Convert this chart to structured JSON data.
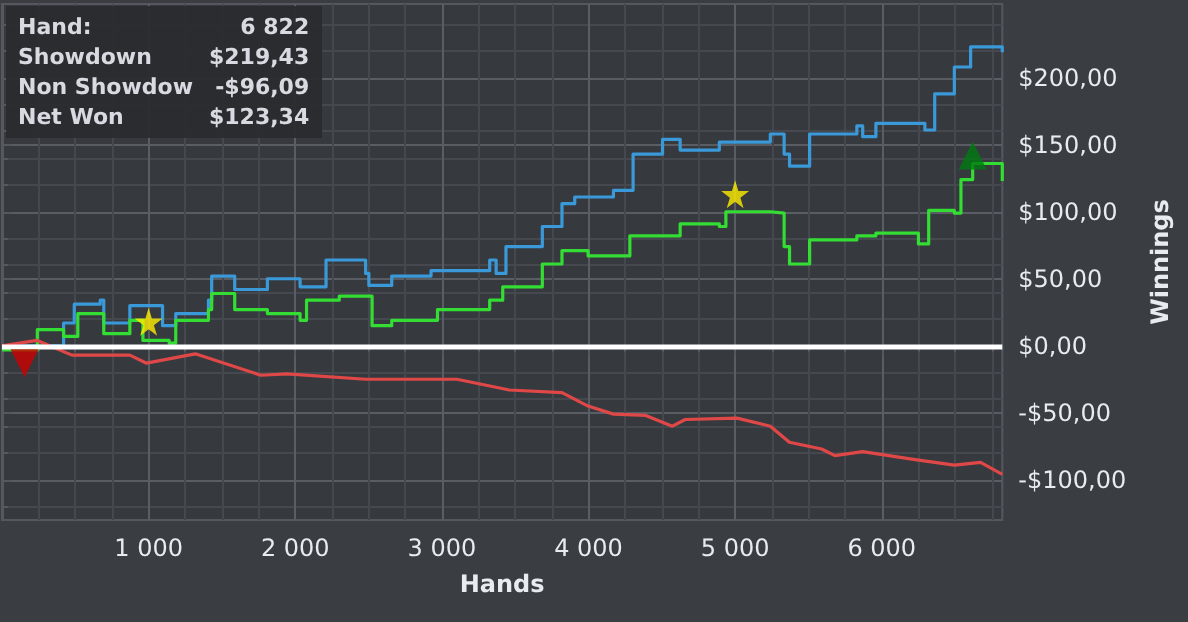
{
  "chart_data": {
    "type": "step",
    "xlabel": "Hands",
    "ylabel": "Winnings",
    "annotations": [
      "Hand:",
      "6 822",
      "Showdown",
      "$219,43",
      "Non Showdow",
      "-$96,09",
      "Net Won",
      "$123,34"
    ],
    "xlim": [
      0,
      6822
    ],
    "ylim": [
      -130,
      255
    ],
    "xticks": [
      {
        "value": 1000,
        "label": "1 000"
      },
      {
        "value": 2000,
        "label": "2 000"
      },
      {
        "value": 3000,
        "label": "3 000"
      },
      {
        "value": 4000,
        "label": "4 000"
      },
      {
        "value": 5000,
        "label": "5 000"
      },
      {
        "value": 6000,
        "label": "6 000"
      }
    ],
    "yticks": [
      {
        "value": -100,
        "label": "-$100,00"
      },
      {
        "value": -50,
        "label": "-$50,00"
      },
      {
        "value": 0,
        "label": "$0,00"
      },
      {
        "value": 50,
        "label": "$50,00"
      },
      {
        "value": 100,
        "label": "$100,00"
      },
      {
        "value": 150,
        "label": "$150,00"
      },
      {
        "value": 200,
        "label": "$200,00"
      }
    ],
    "grid": true,
    "legend": false,
    "marker": "none",
    "ref_lines": [
      {
        "axis": "y",
        "value": 0,
        "color": "#ffffff"
      }
    ],
    "series": [
      {
        "color": "#3a9ad9",
        "x": [
          0,
          420,
          493,
          670,
          694,
          872,
          1095,
          1185,
          1408,
          1430,
          1587,
          1810,
          2033,
          2210,
          2480,
          2502,
          2658,
          2926,
          3326,
          3370,
          3437,
          3685,
          3819,
          3906,
          4170,
          4304,
          4505,
          4625,
          4892,
          5240,
          5334,
          5371,
          5508,
          5830,
          5870,
          5960,
          6228,
          6294,
          6361,
          6495,
          6606,
          6822
        ],
        "values": [
          0,
          17,
          31,
          34,
          17,
          30,
          15,
          24,
          34,
          52,
          42,
          50,
          44,
          64,
          54,
          45,
          52,
          56,
          64,
          54,
          74,
          89,
          106,
          111,
          116,
          143,
          154,
          146,
          152,
          158,
          143,
          134,
          158,
          164,
          156,
          166,
          166,
          161,
          188,
          208,
          223,
          219
        ]
      },
      {
        "color": "#33dd33",
        "x": [
          0,
          241,
          420,
          517,
          694,
          872,
          961,
          1140,
          1185,
          1408,
          1430,
          1587,
          1810,
          2033,
          2077,
          2300,
          2524,
          2658,
          2970,
          3326,
          3415,
          3685,
          3819,
          3997,
          4237,
          4282,
          4625,
          4892,
          4937,
          5240,
          5334,
          5371,
          5508,
          5830,
          5960,
          6250,
          6320,
          6495,
          6540,
          6620,
          6822
        ],
        "values": [
          -3,
          12,
          7,
          24,
          9,
          19,
          4,
          2,
          19,
          27,
          39,
          27,
          24,
          19,
          34,
          37,
          15,
          19,
          27,
          34,
          44,
          61,
          71,
          67,
          67,
          82,
          91,
          89,
          100,
          99,
          74,
          61,
          79,
          82,
          84,
          76,
          101,
          99,
          124,
          136,
          123
        ]
      },
      {
        "type": "line",
        "color": "#e04848",
        "x": [
          0,
          240,
          477,
          872,
          986,
          1318,
          1765,
          1943,
          2480,
          3103,
          3460,
          3819,
          3997,
          4170,
          4390,
          4572,
          4660,
          5013,
          5240,
          5370,
          5590,
          5680,
          5870,
          6228,
          6495,
          6674,
          6822
        ],
        "values": [
          0,
          4,
          -7,
          -7,
          -13,
          -6,
          -22,
          -21,
          -25,
          -25,
          -33,
          -35,
          -45,
          -51,
          -52,
          -60,
          -55,
          -54,
          -60,
          -72,
          -77,
          -82,
          -79,
          -85,
          -89,
          -87,
          -96
        ]
      },
      {
        "type": "scatter",
        "marker": "star",
        "color": "#ffee00",
        "x": [
          1000,
          5000
        ],
        "values": [
          18,
          113
        ]
      },
      {
        "type": "scatter",
        "marker": "triangle",
        "color": "#cc0000",
        "x": [
          154
        ],
        "values": [
          -13
        ]
      },
      {
        "type": "scatter",
        "marker": "triangle",
        "color": "#007a10",
        "x": [
          6620
        ],
        "values": [
          142
        ]
      }
    ]
  }
}
